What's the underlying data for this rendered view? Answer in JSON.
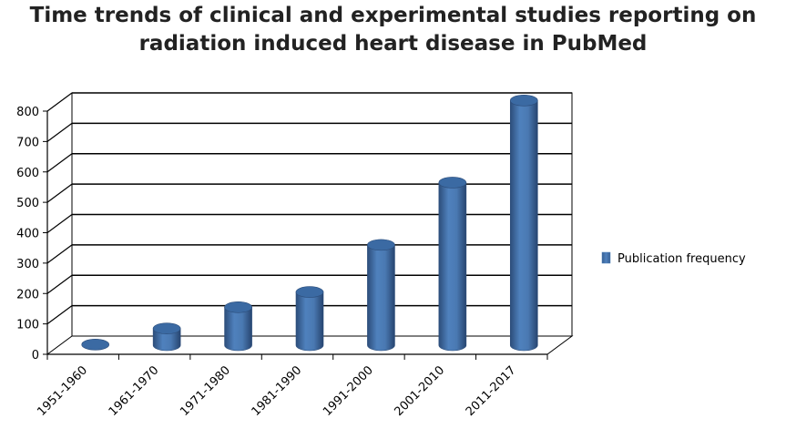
{
  "chart_data": {
    "type": "bar",
    "title": "Time trends of clinical and experimental studies reporting on radiation induced heart disease in PubMed",
    "title_lines": [
      "Time trends of clinical and experimental studies reporting on",
      "radiation induced heart disease in PubMed"
    ],
    "categories": [
      "1951-1960",
      "1961-1970",
      "1971-1980",
      "1981-1990",
      "1991-2000",
      "2001-2010",
      "2011-2017"
    ],
    "series": [
      {
        "name": "Publication frequency",
        "values": [
          2,
          55,
          125,
          175,
          330,
          535,
          805
        ],
        "color": "#4f81bd"
      }
    ],
    "ylim": [
      0,
      800
    ],
    "yticks": [
      0,
      100,
      200,
      300,
      400,
      500,
      600,
      700,
      800
    ],
    "grid": true,
    "legend_position": "right",
    "style": "3d-cylinder"
  }
}
